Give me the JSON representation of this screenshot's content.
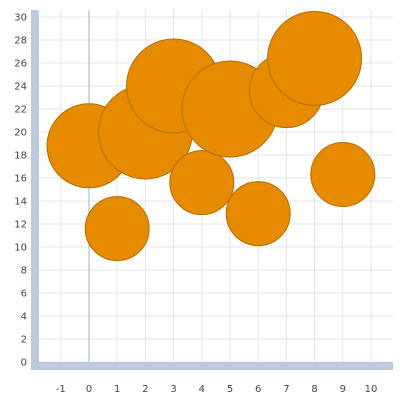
{
  "chart_data": {
    "type": "scatter",
    "subtype": "bubble",
    "title": "",
    "xlabel": "",
    "ylabel": "",
    "xlim": [
      -2,
      11
    ],
    "ylim": [
      0,
      30
    ],
    "x_ticks": [
      -1,
      0,
      1,
      2,
      3,
      4,
      5,
      6,
      7,
      8,
      9,
      10
    ],
    "y_ticks": [
      0,
      2,
      4,
      6,
      8,
      10,
      12,
      14,
      16,
      18,
      20,
      22,
      24,
      26,
      28,
      30
    ],
    "grid": true,
    "legend": "none",
    "colors": {
      "bubble_fill": "#e68a00",
      "bubble_stroke": "#b56d00",
      "axis_band": "#bccadb",
      "zero_line": "#9fb3c8",
      "grid": "#e6e6e6"
    },
    "series": [
      {
        "points": [
          {
            "x": 0,
            "y": 18.8,
            "size": 42
          },
          {
            "x": 1,
            "y": 11.6,
            "size": 32
          },
          {
            "x": 2,
            "y": 20.0,
            "size": 47
          },
          {
            "x": 3,
            "y": 24.0,
            "size": 47
          },
          {
            "x": 4,
            "y": 15.6,
            "size": 32
          },
          {
            "x": 5,
            "y": 22.0,
            "size": 48
          },
          {
            "x": 6,
            "y": 12.9,
            "size": 32
          },
          {
            "x": 7,
            "y": 23.6,
            "size": 37
          },
          {
            "x": 8,
            "y": 26.4,
            "size": 47
          },
          {
            "x": 9,
            "y": 16.3,
            "size": 32
          }
        ]
      }
    ]
  }
}
